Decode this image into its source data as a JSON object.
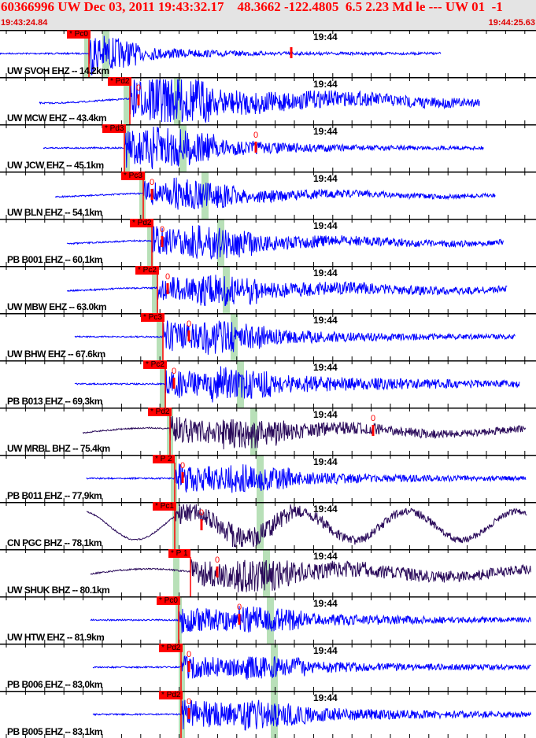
{
  "header": {
    "title": "60366996 UW Dec 03, 2011 19:43:32.17    48.3662 -122.4805  6.5 2.23 Md le --- UW 01  -1",
    "start_time": "19:43:24.84",
    "end_time": "19:44:25.63",
    "color": "#ff0000"
  },
  "time_mark": "19:44",
  "colors": {
    "ehz_trace": "#0000ff",
    "bhz_trace": "#2a0a5a",
    "pick": "#ff0000",
    "s_band": "#b8e0b8",
    "background": "#ffffff"
  },
  "coda_marker": "0",
  "stations": [
    {
      "label": "UW SVOH EHZ -- 14.2km",
      "pick": "* Pc0",
      "type": "EHZ"
    },
    {
      "label": "UW MCW EHZ -- 43.4km",
      "pick": "* Pd2",
      "type": "EHZ"
    },
    {
      "label": "UW JCW EHZ -- 45.1km",
      "pick": "* Pd3",
      "type": "EHZ"
    },
    {
      "label": "UW BLN EHZ -- 54.1km",
      "pick": "* Pc3",
      "type": "EHZ"
    },
    {
      "label": "PB B001 EHZ -- 60.1km",
      "pick": "* Pd2",
      "type": "EHZ"
    },
    {
      "label": "UW MBW EHZ -- 63.0km",
      "pick": "* Pc2",
      "type": "EHZ"
    },
    {
      "label": "UW BHW EHZ -- 67.6km",
      "pick": "* Pc3",
      "type": "EHZ"
    },
    {
      "label": "PB B013 EHZ -- 69.3km",
      "pick": "* Pc2",
      "type": "EHZ"
    },
    {
      "label": "UW MRBL BHZ -- 75.4km",
      "pick": "* Pd2",
      "type": "BHZ"
    },
    {
      "label": "PB B011 EHZ -- 77.9km",
      "pick": "* P 2",
      "type": "EHZ"
    },
    {
      "label": "CN PGC BHZ -- 78.1km",
      "pick": "* Pc1",
      "type": "BHZ"
    },
    {
      "label": "UW SHUK BHZ -- 80.1km",
      "pick": "* P 1",
      "type": "BHZ"
    },
    {
      "label": "UW HTW EHZ -- 81.9km",
      "pick": "* Pc0",
      "type": "EHZ"
    },
    {
      "label": "PB B006 EHZ -- 83.0km",
      "pick": "* Pd2",
      "type": "EHZ"
    },
    {
      "label": "PB B005 EHZ -- 83.1km",
      "pick": "* Pd2",
      "type": "EHZ"
    }
  ]
}
